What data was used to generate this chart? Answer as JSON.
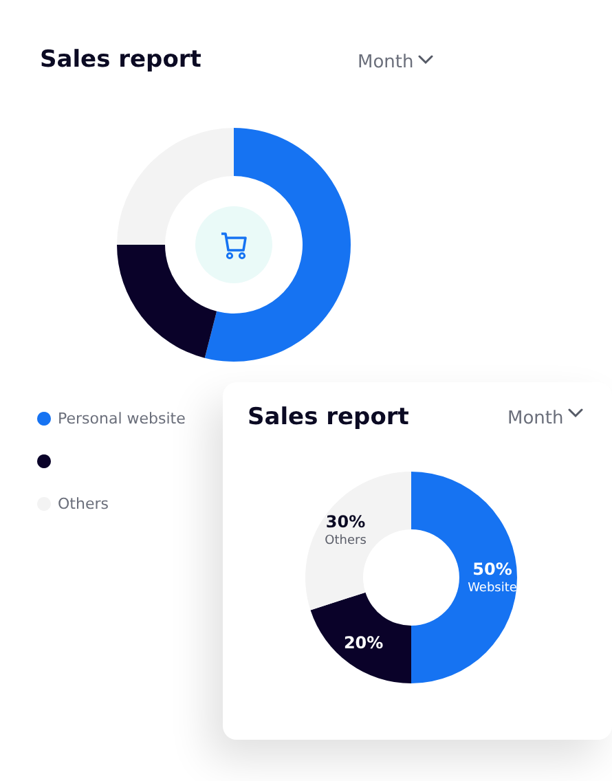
{
  "chart_data": [
    {
      "type": "donut",
      "title": "Sales report",
      "annotations": [
        "Month"
      ],
      "categories": [
        "Personal website",
        null,
        "Others"
      ],
      "values": [
        54,
        21,
        25
      ],
      "colors": [
        "#1673f2",
        "#0a0229",
        "#f3f3f3"
      ],
      "legend": "bottom left"
    },
    {
      "type": "donut",
      "title": "Sales report",
      "annotations": [
        "Month"
      ],
      "categories": [
        "Website",
        null,
        "Others"
      ],
      "values": [
        50,
        20,
        30
      ],
      "colors": [
        "#1673f2",
        "#0a0229",
        "#f3f3f3"
      ],
      "value_labels": [
        "50%",
        "20%",
        "30%"
      ]
    }
  ]
}
